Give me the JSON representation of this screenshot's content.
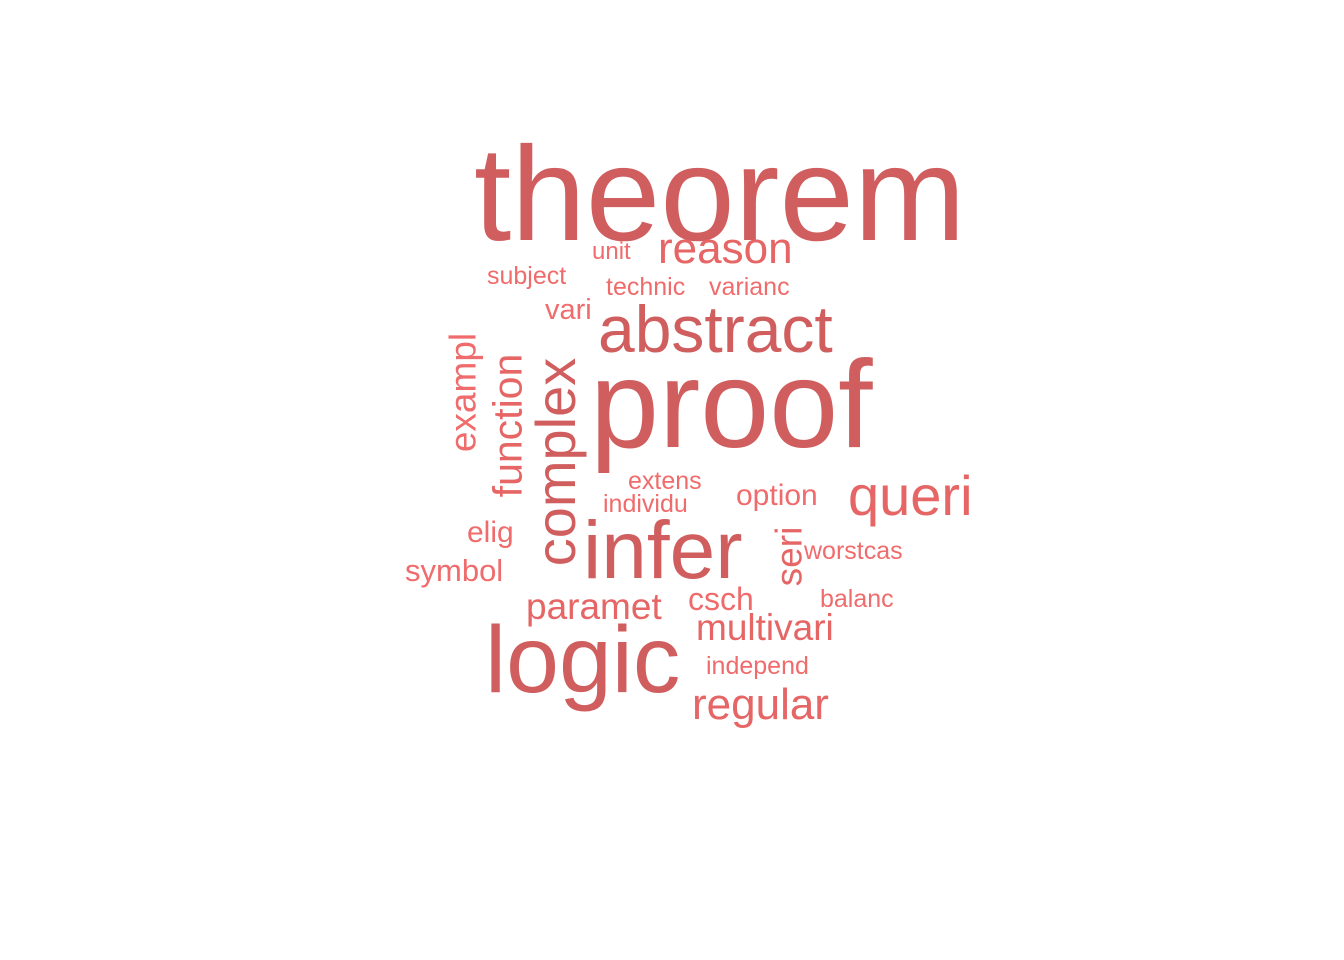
{
  "wordcloud": {
    "palette": {
      "dark": "#d05e5e",
      "mid": "#e66565",
      "light": "#f06b6b"
    },
    "words": {
      "theorem": "theorem",
      "proof": "proof",
      "logic": "logic",
      "infer": "infer",
      "abstract": "abstract",
      "complex": "complex",
      "queri": "queri",
      "reason": "reason",
      "regular": "regular",
      "function": "function",
      "multivari": "multivari",
      "paramet": "paramet",
      "exampl": "exampl",
      "seri": "seri",
      "csch": "csch",
      "symbol": "symbol",
      "option": "option",
      "elig": "elig",
      "vari": "vari",
      "subject": "subject",
      "technic": "technic",
      "varianc": "varianc",
      "unit": "unit",
      "extens": "extens",
      "individu": "individu",
      "worstcas": "worstcas",
      "balanc": "balanc",
      "independ": "independ"
    }
  }
}
